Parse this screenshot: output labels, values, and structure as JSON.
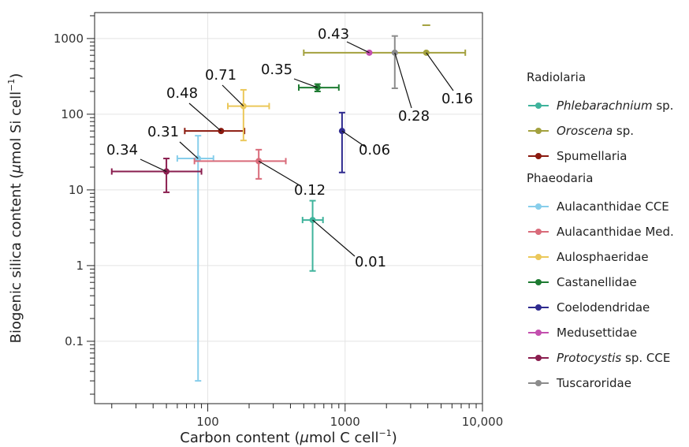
{
  "chart_data": {
    "type": "scatter",
    "xlabel_prefix": "Carbon content (",
    "xlabel_mu": "μ",
    "xlabel_unit": "mol C cell",
    "xlabel_sup": "−1",
    "xlabel_suffix": ")",
    "ylabel_prefix": "Biogenic silica content (",
    "ylabel_mu": "μ",
    "ylabel_unit": "mol Si cell",
    "ylabel_sup": "−1",
    "ylabel_suffix": ")",
    "x_scale": "log",
    "y_scale": "log",
    "xlim": [
      15,
      10000
    ],
    "ylim": [
      0.015,
      2200
    ],
    "x_ticks": [
      {
        "value": 100,
        "label": "100"
      },
      {
        "value": 1000,
        "label": "1000"
      },
      {
        "value": 10000,
        "label": "10,000"
      }
    ],
    "y_ticks": [
      {
        "value": 0.1,
        "label": "0.1"
      },
      {
        "value": 1,
        "label": "1"
      },
      {
        "value": 10,
        "label": "10"
      },
      {
        "value": 100,
        "label": "100"
      },
      {
        "value": 1000,
        "label": "1000"
      }
    ],
    "grid": true,
    "legend_position": "right",
    "groups": [
      {
        "title": "Radiolaria",
        "series": [
          {
            "name": "Phlebarachnium",
            "suffix": " sp.",
            "italic": true,
            "color": "#3fb39c",
            "x": 580,
            "y": 4,
            "xerr": [
              490,
              690
            ],
            "yerr": [
              0.85,
              7.2
            ],
            "label": "0.01"
          },
          {
            "name": "Oroscena",
            "suffix": " sp.",
            "italic": true,
            "color": "#a3a13e",
            "x": 3900,
            "y": 650,
            "xerr": [
              500,
              7500
            ],
            "yerr": [
              650,
              650
            ],
            "label": "0.16",
            "extra_y": 1500
          },
          {
            "name": "Spumellaria",
            "suffix": "",
            "italic": false,
            "color": "#8b1a0f",
            "x": 125,
            "y": 60,
            "xerr": [
              68,
              185
            ],
            "yerr": [
              60,
              60
            ],
            "label": "0.48"
          }
        ]
      },
      {
        "title": "Phaeodaria",
        "series": [
          {
            "name": "Aulacanthidae CCE",
            "suffix": "",
            "italic": false,
            "color": "#87ceeb",
            "x": 85,
            "y": 26,
            "xerr": [
              60,
              110
            ],
            "yerr": [
              0.03,
              52
            ],
            "label": "0.31"
          },
          {
            "name": "Aulacanthidae Med.",
            "suffix": "",
            "italic": false,
            "color": "#d96b7a",
            "x": 235,
            "y": 24,
            "xerr": [
              80,
              370
            ],
            "yerr": [
              14,
              34
            ],
            "label": "0.12"
          },
          {
            "name": "Aulosphaeridae",
            "suffix": "",
            "italic": false,
            "color": "#ebc85a",
            "x": 182,
            "y": 128,
            "xerr": [
              140,
              280
            ],
            "yerr": [
              45,
              210
            ],
            "label": "0.71"
          },
          {
            "name": "Castanellidae",
            "suffix": "",
            "italic": false,
            "color": "#1e7b32",
            "x": 630,
            "y": 225,
            "xerr": [
              460,
              900
            ],
            "yerr": [
              200,
              250
            ],
            "label": "0.35"
          },
          {
            "name": "Coelodendridae",
            "suffix": "",
            "italic": false,
            "color": "#2e2a8f",
            "x": 950,
            "y": 60,
            "xerr": [
              950,
              950
            ],
            "yerr": [
              17,
              105
            ],
            "label": "0.06"
          },
          {
            "name": "Medusettidae",
            "suffix": "",
            "italic": false,
            "color": "#c34fae",
            "x": 1500,
            "y": 650,
            "xerr": [
              1500,
              1500
            ],
            "yerr": [
              650,
              650
            ],
            "label": "0.43"
          },
          {
            "name": "Protocystis",
            "suffix": " sp. CCE",
            "italic": true,
            "color": "#8a1e4f",
            "x": 50,
            "y": 17.5,
            "xerr": [
              20,
              90
            ],
            "yerr": [
              9.3,
              26
            ],
            "label": "0.34"
          },
          {
            "name": "Tuscaroridae",
            "suffix": "",
            "italic": false,
            "color": "#8c8c8c",
            "x": 2300,
            "y": 650,
            "xerr": [
              2300,
              2300
            ],
            "yerr": [
              220,
              1080
            ],
            "label": "0.28"
          }
        ]
      }
    ]
  }
}
